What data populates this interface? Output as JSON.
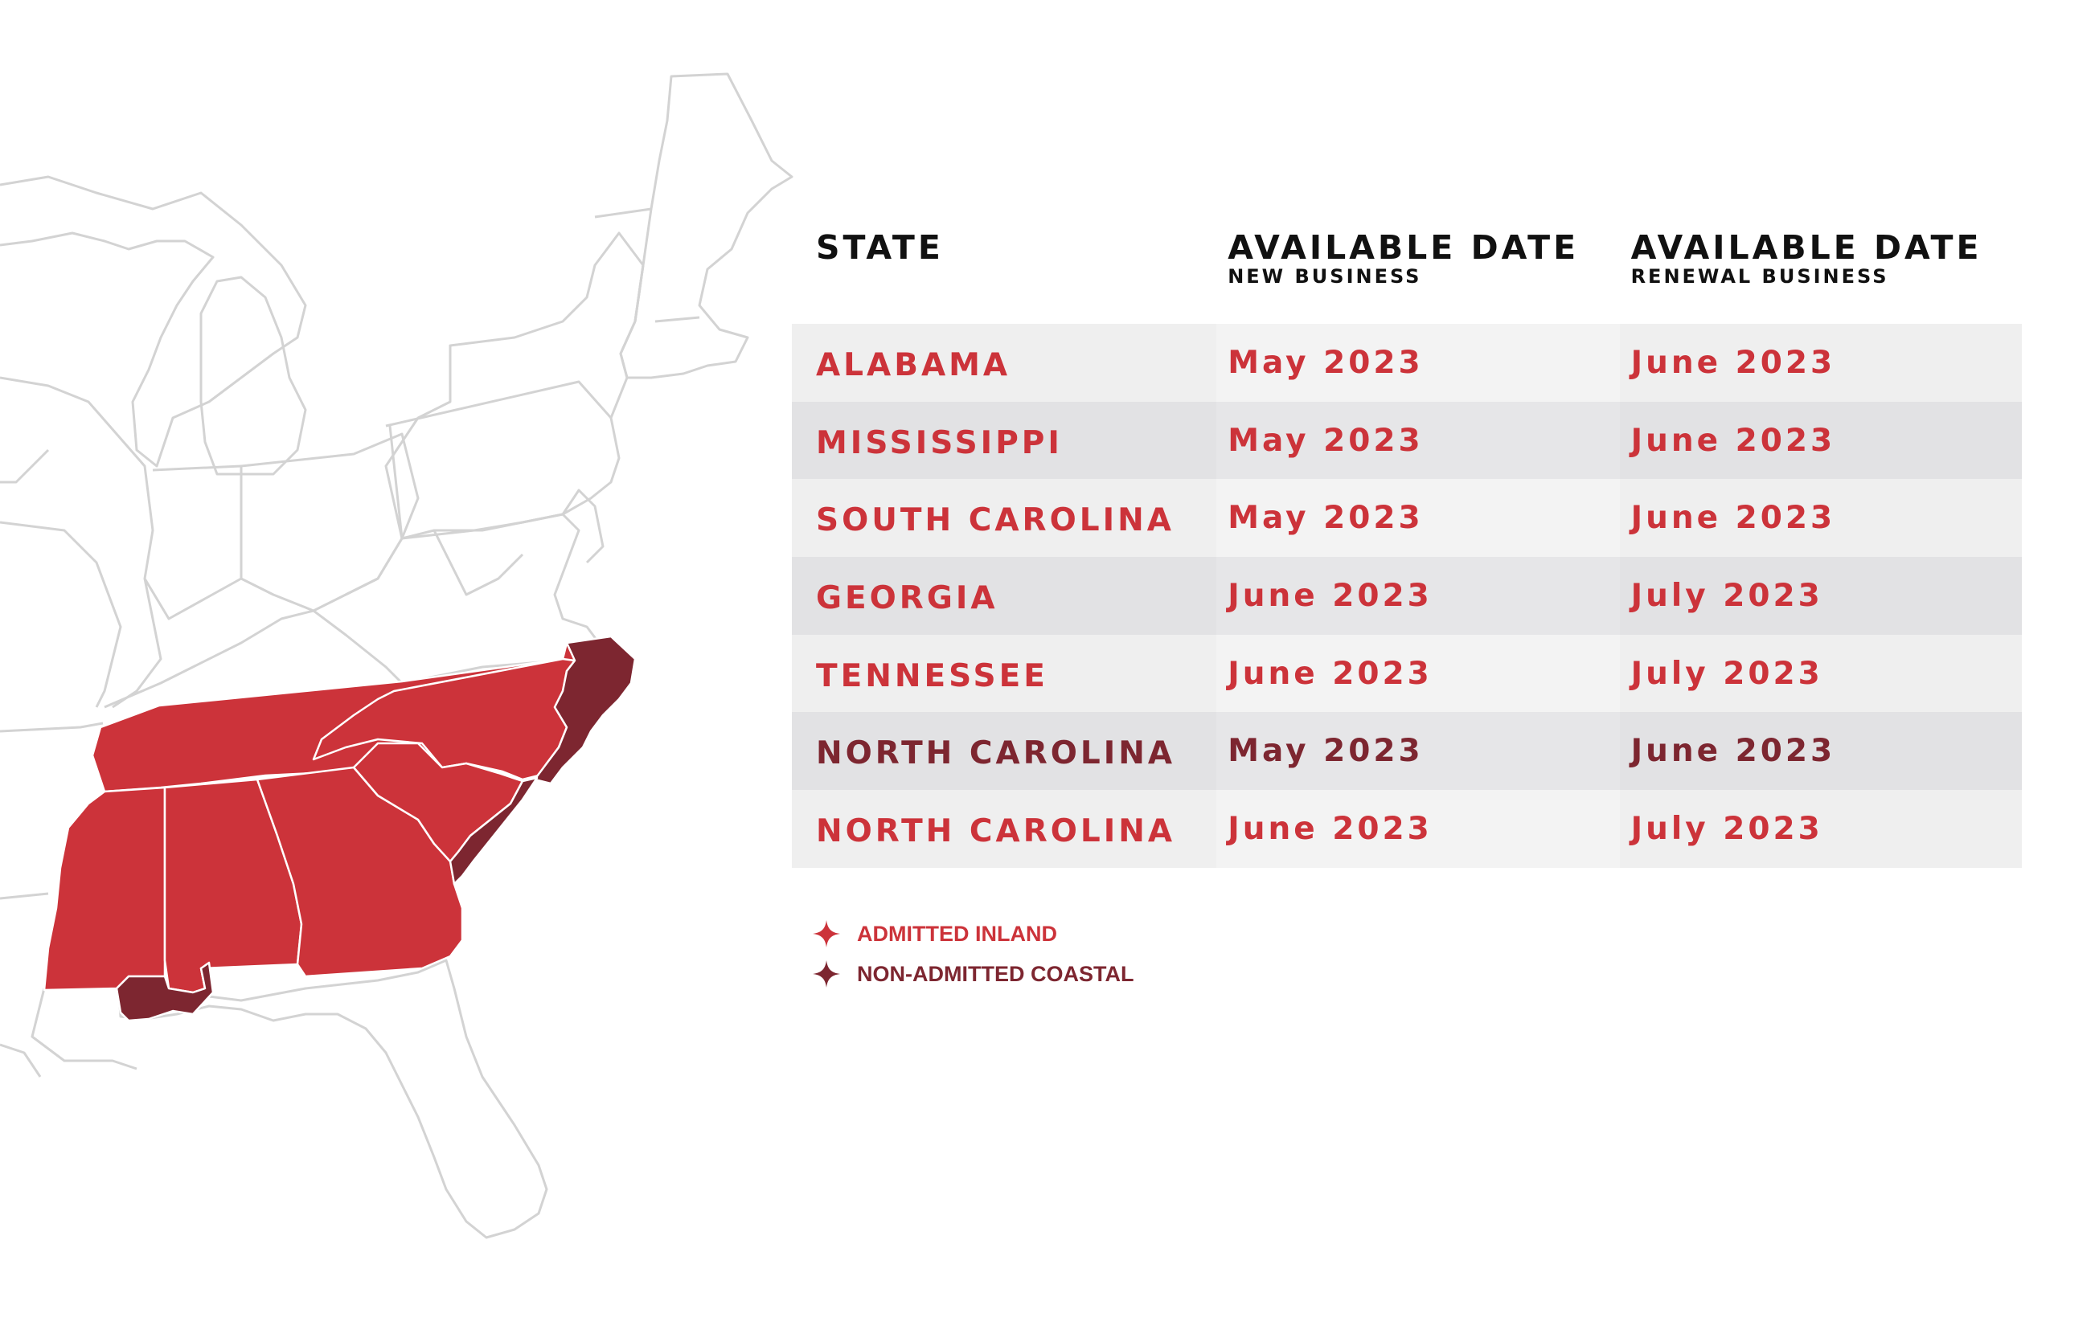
{
  "colors": {
    "admitted": "#cc333a",
    "coastal": "#7d2630",
    "header_text": "#111111",
    "map_outline": "#d3d3d3"
  },
  "table": {
    "headers": [
      {
        "main": "STATE",
        "sub": ""
      },
      {
        "main": "AVAILABLE DATE",
        "sub": "NEW BUSINESS"
      },
      {
        "main": "AVAILABLE DATE",
        "sub": "RENEWAL BUSINESS"
      }
    ],
    "rows": [
      {
        "state": "ALABAMA",
        "new_business": "May 2023",
        "renewal_business": "June 2023",
        "category": "admitted"
      },
      {
        "state": "MISSISSIPPI",
        "new_business": "May 2023",
        "renewal_business": "June 2023",
        "category": "admitted"
      },
      {
        "state": "SOUTH CAROLINA",
        "new_business": "May 2023",
        "renewal_business": "June 2023",
        "category": "admitted"
      },
      {
        "state": "GEORGIA",
        "new_business": "June 2023",
        "renewal_business": "July 2023",
        "category": "admitted"
      },
      {
        "state": "TENNESSEE",
        "new_business": "June 2023",
        "renewal_business": "July 2023",
        "category": "admitted"
      },
      {
        "state": "NORTH CAROLINA",
        "new_business": "May 2023",
        "renewal_business": "June 2023",
        "category": "coastal"
      },
      {
        "state": "NORTH CAROLINA",
        "new_business": "June 2023",
        "renewal_business": "July 2023",
        "category": "admitted"
      }
    ]
  },
  "legend": [
    {
      "label": "ADMITTED INLAND",
      "category": "admitted",
      "icon": "sparkle-icon"
    },
    {
      "label": "NON-ADMITTED COASTAL",
      "category": "coastal",
      "icon": "sparkle-icon"
    }
  ]
}
